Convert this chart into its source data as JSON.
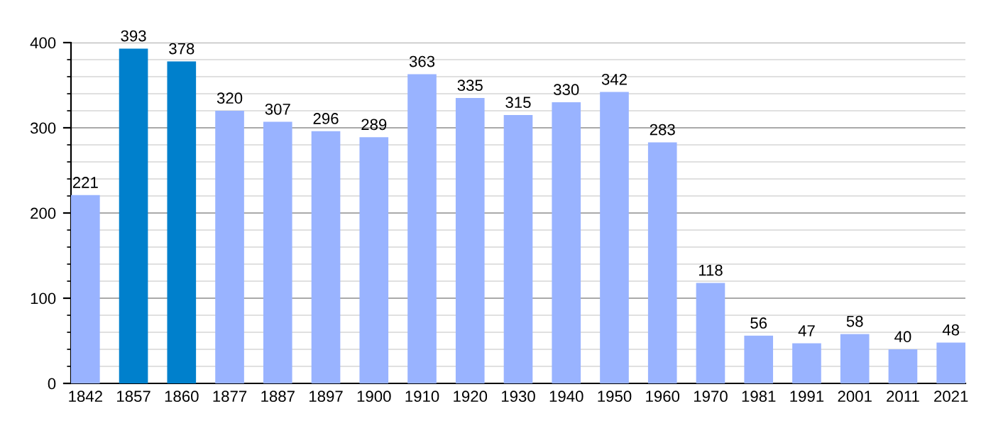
{
  "chart_data": {
    "type": "bar",
    "categories": [
      "1842",
      "1857",
      "1860",
      "1877",
      "1887",
      "1897",
      "1900",
      "1910",
      "1920",
      "1930",
      "1940",
      "1950",
      "1960",
      "1970",
      "1981",
      "1991",
      "2001",
      "2011",
      "2021"
    ],
    "values": [
      221,
      393,
      378,
      320,
      307,
      296,
      289,
      363,
      335,
      315,
      330,
      342,
      283,
      118,
      56,
      47,
      58,
      40,
      48
    ],
    "colors": [
      "#99b3ff",
      "#0080cc",
      "#0080cc",
      "#99b3ff",
      "#99b3ff",
      "#99b3ff",
      "#99b3ff",
      "#99b3ff",
      "#99b3ff",
      "#99b3ff",
      "#99b3ff",
      "#99b3ff",
      "#99b3ff",
      "#99b3ff",
      "#99b3ff",
      "#99b3ff",
      "#99b3ff",
      "#99b3ff",
      "#99b3ff"
    ],
    "ylim": [
      0,
      400
    ],
    "yticks": [
      0,
      100,
      200,
      300,
      400
    ],
    "grid": "y",
    "data_labels": true
  }
}
